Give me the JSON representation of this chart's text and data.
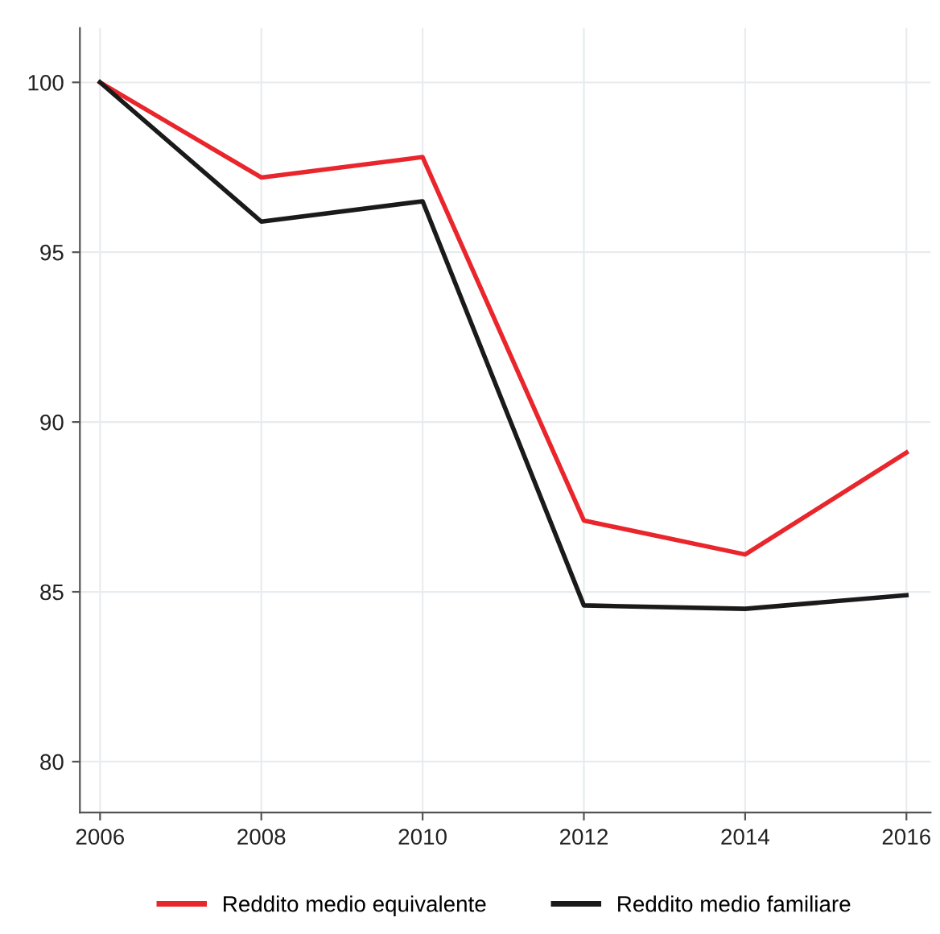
{
  "chart_data": {
    "type": "line",
    "x": [
      2006,
      2008,
      2010,
      2012,
      2014,
      2016
    ],
    "series": [
      {
        "name": "Reddito medio equivalente",
        "color": "#e8262c",
        "values": [
          100,
          97.2,
          97.8,
          87.1,
          86.1,
          89.1
        ]
      },
      {
        "name": "Reddito medio familiare",
        "color": "#1a1a1a",
        "values": [
          100,
          95.9,
          96.5,
          84.6,
          84.5,
          84.9
        ]
      }
    ],
    "xlim": [
      2005.75,
      2016.3
    ],
    "xticks": [
      2006,
      2008,
      2010,
      2012,
      2014,
      2016
    ],
    "ylim": [
      78.5,
      101.6
    ],
    "yticks": [
      80,
      85,
      90,
      95,
      100
    ],
    "grid": true,
    "legend": "bottom",
    "marker": "none",
    "line_style": "solid"
  }
}
